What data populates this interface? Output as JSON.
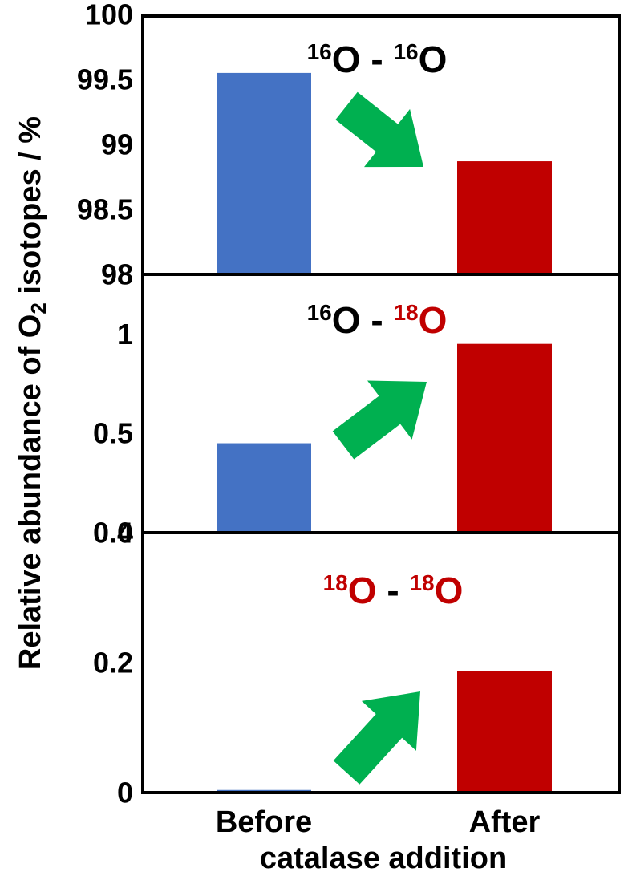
{
  "colors": {
    "before": "#4472c4",
    "after": "#c00000",
    "arrow": "#00b050",
    "axis": "#000000",
    "isotope_18": "#c00000",
    "isotope_16": "#000000"
  },
  "y_axis_label": {
    "main": "Relative abundance of O",
    "subscript": "2",
    "tail": " isotopes / %"
  },
  "x_axis": {
    "categories": [
      "Before",
      "After"
    ],
    "label": "catalase addition"
  },
  "chart_data": [
    {
      "type": "bar",
      "title_parts": [
        {
          "sup": "16",
          "base": "O",
          "color": "#000000"
        },
        {
          "sep": " - "
        },
        {
          "sup": "16",
          "base": "O",
          "color": "#000000"
        }
      ],
      "categories": [
        "Before",
        "After"
      ],
      "values": [
        99.55,
        98.87
      ],
      "ylim": [
        98,
        100
      ],
      "yticks": [
        "98",
        "98.5",
        "99",
        "99.5",
        "100"
      ],
      "arrow_icon": "green-arrow-down-right-icon"
    },
    {
      "type": "bar",
      "title_parts": [
        {
          "sup": "16",
          "base": "O",
          "color": "#000000"
        },
        {
          "sep": " - "
        },
        {
          "sup": "18",
          "base": "O",
          "color": "#c00000"
        }
      ],
      "categories": [
        "Before",
        "After"
      ],
      "values": [
        0.45,
        0.95
      ],
      "ylim": [
        0,
        1.3
      ],
      "yticks": [
        "0",
        "0.5",
        "1"
      ],
      "arrow_icon": "green-arrow-up-right-icon"
    },
    {
      "type": "bar",
      "title_parts": [
        {
          "sup": "18",
          "base": "O",
          "color": "#c00000"
        },
        {
          "sep": " - "
        },
        {
          "sup": "18",
          "base": "O",
          "color": "#c00000"
        }
      ],
      "categories": [
        "Before",
        "After"
      ],
      "values": [
        0.004,
        0.187
      ],
      "ylim": [
        0,
        0.4
      ],
      "yticks": [
        "0",
        "0.2",
        "0.4"
      ],
      "arrow_icon": "green-arrow-up-right-icon"
    }
  ]
}
